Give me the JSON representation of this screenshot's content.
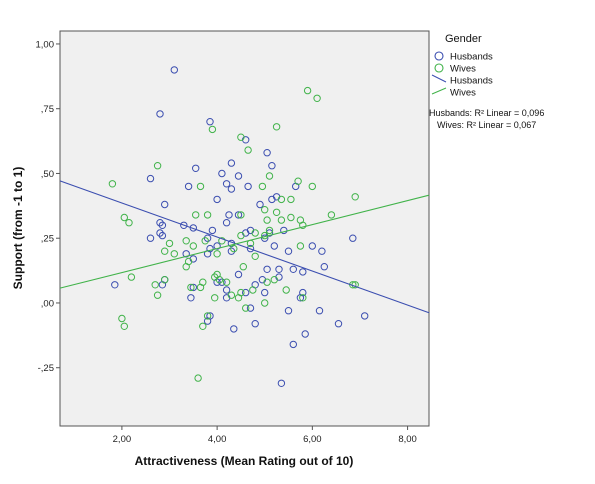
{
  "chart_data": {
    "type": "scatter",
    "xlabel": "Attractiveness (Mean Rating out of 10)",
    "ylabel": "Support (from -1 to 1)",
    "xlim": [
      0.7,
      8.45
    ],
    "ylim": [
      -0.475,
      1.05
    ],
    "x_ticks": [
      2,
      4,
      6,
      8
    ],
    "x_tick_labels": [
      "2,00",
      "4,00",
      "6,00",
      "8,00"
    ],
    "y_ticks": [
      -0.25,
      0,
      0.25,
      0.5,
      0.75,
      1.0
    ],
    "y_tick_labels": [
      "-,25",
      ",00",
      ",25",
      ",50",
      ",75",
      "1,00"
    ],
    "background_color": "#f0f0f0",
    "grid": false,
    "legend": {
      "title": "Gender",
      "position": "right",
      "markers": [
        "Husbands",
        "Wives"
      ],
      "lines": [
        "Husbands",
        "Wives"
      ]
    },
    "annotations": {
      "husbands_r2": "Husbands: R² Linear = 0,096",
      "wives_r2": "Wives: R² Linear = 0,067"
    },
    "series": [
      {
        "name": "Husbands",
        "color": "#3b4eb0",
        "marker": "circle-open",
        "fit_line": {
          "intercept": 0.5174,
          "slope": -0.0657
        },
        "points": [
          [
            3.1,
            0.9
          ],
          [
            2.8,
            0.73
          ],
          [
            3.85,
            0.7
          ],
          [
            4.6,
            0.63
          ],
          [
            5.05,
            0.58
          ],
          [
            4.3,
            0.54
          ],
          [
            5.15,
            0.53
          ],
          [
            3.55,
            0.52
          ],
          [
            4.1,
            0.5
          ],
          [
            4.45,
            0.49
          ],
          [
            2.6,
            0.48
          ],
          [
            4.2,
            0.46
          ],
          [
            3.4,
            0.45
          ],
          [
            4.65,
            0.45
          ],
          [
            4.3,
            0.44
          ],
          [
            5.65,
            0.45
          ],
          [
            5.15,
            0.4
          ],
          [
            4.0,
            0.4
          ],
          [
            4.9,
            0.38
          ],
          [
            5.25,
            0.41
          ],
          [
            2.9,
            0.38
          ],
          [
            4.25,
            0.34
          ],
          [
            4.45,
            0.34
          ],
          [
            4.2,
            0.31
          ],
          [
            2.8,
            0.31
          ],
          [
            2.85,
            0.3
          ],
          [
            3.3,
            0.3
          ],
          [
            3.5,
            0.29
          ],
          [
            3.9,
            0.28
          ],
          [
            4.7,
            0.28
          ],
          [
            5.1,
            0.27
          ],
          [
            5.4,
            0.28
          ],
          [
            4.6,
            0.27
          ],
          [
            2.8,
            0.27
          ],
          [
            2.85,
            0.26
          ],
          [
            5.0,
            0.25
          ],
          [
            2.6,
            0.25
          ],
          [
            3.8,
            0.25
          ],
          [
            4.3,
            0.23
          ],
          [
            5.2,
            0.22
          ],
          [
            6.0,
            0.22
          ],
          [
            4.0,
            0.22
          ],
          [
            3.85,
            0.21
          ],
          [
            6.2,
            0.2
          ],
          [
            4.7,
            0.21
          ],
          [
            5.5,
            0.2
          ],
          [
            3.35,
            0.19
          ],
          [
            3.8,
            0.19
          ],
          [
            4.3,
            0.2
          ],
          [
            3.5,
            0.17
          ],
          [
            6.25,
            0.14
          ],
          [
            5.05,
            0.13
          ],
          [
            5.6,
            0.13
          ],
          [
            5.3,
            0.13
          ],
          [
            5.8,
            0.12
          ],
          [
            4.45,
            0.11
          ],
          [
            5.3,
            0.1
          ],
          [
            4.95,
            0.09
          ],
          [
            4.0,
            0.08
          ],
          [
            4.1,
            0.08
          ],
          [
            4.8,
            0.07
          ],
          [
            3.5,
            0.06
          ],
          [
            1.85,
            0.07
          ],
          [
            2.85,
            0.07
          ],
          [
            2.9,
            0.09
          ],
          [
            4.2,
            0.05
          ],
          [
            4.6,
            0.04
          ],
          [
            5.0,
            0.04
          ],
          [
            5.8,
            0.04
          ],
          [
            4.2,
            0.02
          ],
          [
            5.75,
            0.02
          ],
          [
            3.45,
            0.02
          ],
          [
            4.7,
            -0.02
          ],
          [
            5.5,
            -0.03
          ],
          [
            6.15,
            -0.03
          ],
          [
            7.1,
            -0.05
          ],
          [
            3.85,
            -0.05
          ],
          [
            3.8,
            -0.07
          ],
          [
            4.8,
            -0.08
          ],
          [
            6.55,
            -0.08
          ],
          [
            4.35,
            -0.1
          ],
          [
            5.85,
            -0.12
          ],
          [
            5.6,
            -0.16
          ],
          [
            5.35,
            -0.31
          ],
          [
            6.85,
            0.25
          ]
        ]
      },
      {
        "name": "Wives",
        "color": "#41b34a",
        "marker": "circle-open",
        "fit_line": {
          "intercept": 0.0248,
          "slope": 0.0463
        },
        "points": [
          [
            5.9,
            0.82
          ],
          [
            6.1,
            0.79
          ],
          [
            5.25,
            0.68
          ],
          [
            3.9,
            0.67
          ],
          [
            4.5,
            0.64
          ],
          [
            4.65,
            0.59
          ],
          [
            5.1,
            0.49
          ],
          [
            4.95,
            0.45
          ],
          [
            6.0,
            0.45
          ],
          [
            5.7,
            0.47
          ],
          [
            2.75,
            0.53
          ],
          [
            1.8,
            0.46
          ],
          [
            3.65,
            0.45
          ],
          [
            6.9,
            0.41
          ],
          [
            5.35,
            0.4
          ],
          [
            5.55,
            0.4
          ],
          [
            5.0,
            0.36
          ],
          [
            5.25,
            0.35
          ],
          [
            5.05,
            0.32
          ],
          [
            5.35,
            0.32
          ],
          [
            5.55,
            0.33
          ],
          [
            5.75,
            0.32
          ],
          [
            4.5,
            0.34
          ],
          [
            3.55,
            0.34
          ],
          [
            3.8,
            0.34
          ],
          [
            6.4,
            0.34
          ],
          [
            2.05,
            0.33
          ],
          [
            2.15,
            0.31
          ],
          [
            5.8,
            0.3
          ],
          [
            4.8,
            0.27
          ],
          [
            5.0,
            0.26
          ],
          [
            5.1,
            0.28
          ],
          [
            4.5,
            0.26
          ],
          [
            3.35,
            0.24
          ],
          [
            3.75,
            0.24
          ],
          [
            4.1,
            0.24
          ],
          [
            3.0,
            0.23
          ],
          [
            3.5,
            0.22
          ],
          [
            4.7,
            0.23
          ],
          [
            5.75,
            0.22
          ],
          [
            4.35,
            0.21
          ],
          [
            2.9,
            0.2
          ],
          [
            3.1,
            0.19
          ],
          [
            4.0,
            0.19
          ],
          [
            4.8,
            0.18
          ],
          [
            3.4,
            0.16
          ],
          [
            3.35,
            0.14
          ],
          [
            4.55,
            0.14
          ],
          [
            2.9,
            0.09
          ],
          [
            3.7,
            0.08
          ],
          [
            4.05,
            0.09
          ],
          [
            3.95,
            0.1
          ],
          [
            4.2,
            0.08
          ],
          [
            5.05,
            0.08
          ],
          [
            5.2,
            0.09
          ],
          [
            3.45,
            0.06
          ],
          [
            3.65,
            0.06
          ],
          [
            5.45,
            0.05
          ],
          [
            4.5,
            0.04
          ],
          [
            3.95,
            0.02
          ],
          [
            4.3,
            0.03
          ],
          [
            4.45,
            0.02
          ],
          [
            4.75,
            0.05
          ],
          [
            5.8,
            0.02
          ],
          [
            2.75,
            0.03
          ],
          [
            2.2,
            0.1
          ],
          [
            5.0,
            0.0
          ],
          [
            4.6,
            -0.02
          ],
          [
            3.8,
            -0.05
          ],
          [
            2.0,
            -0.06
          ],
          [
            2.05,
            -0.09
          ],
          [
            3.7,
            -0.09
          ],
          [
            3.6,
            -0.29
          ],
          [
            6.9,
            0.07
          ],
          [
            6.85,
            0.07
          ],
          [
            2.7,
            0.07
          ],
          [
            4.0,
            0.11
          ]
        ]
      }
    ]
  }
}
